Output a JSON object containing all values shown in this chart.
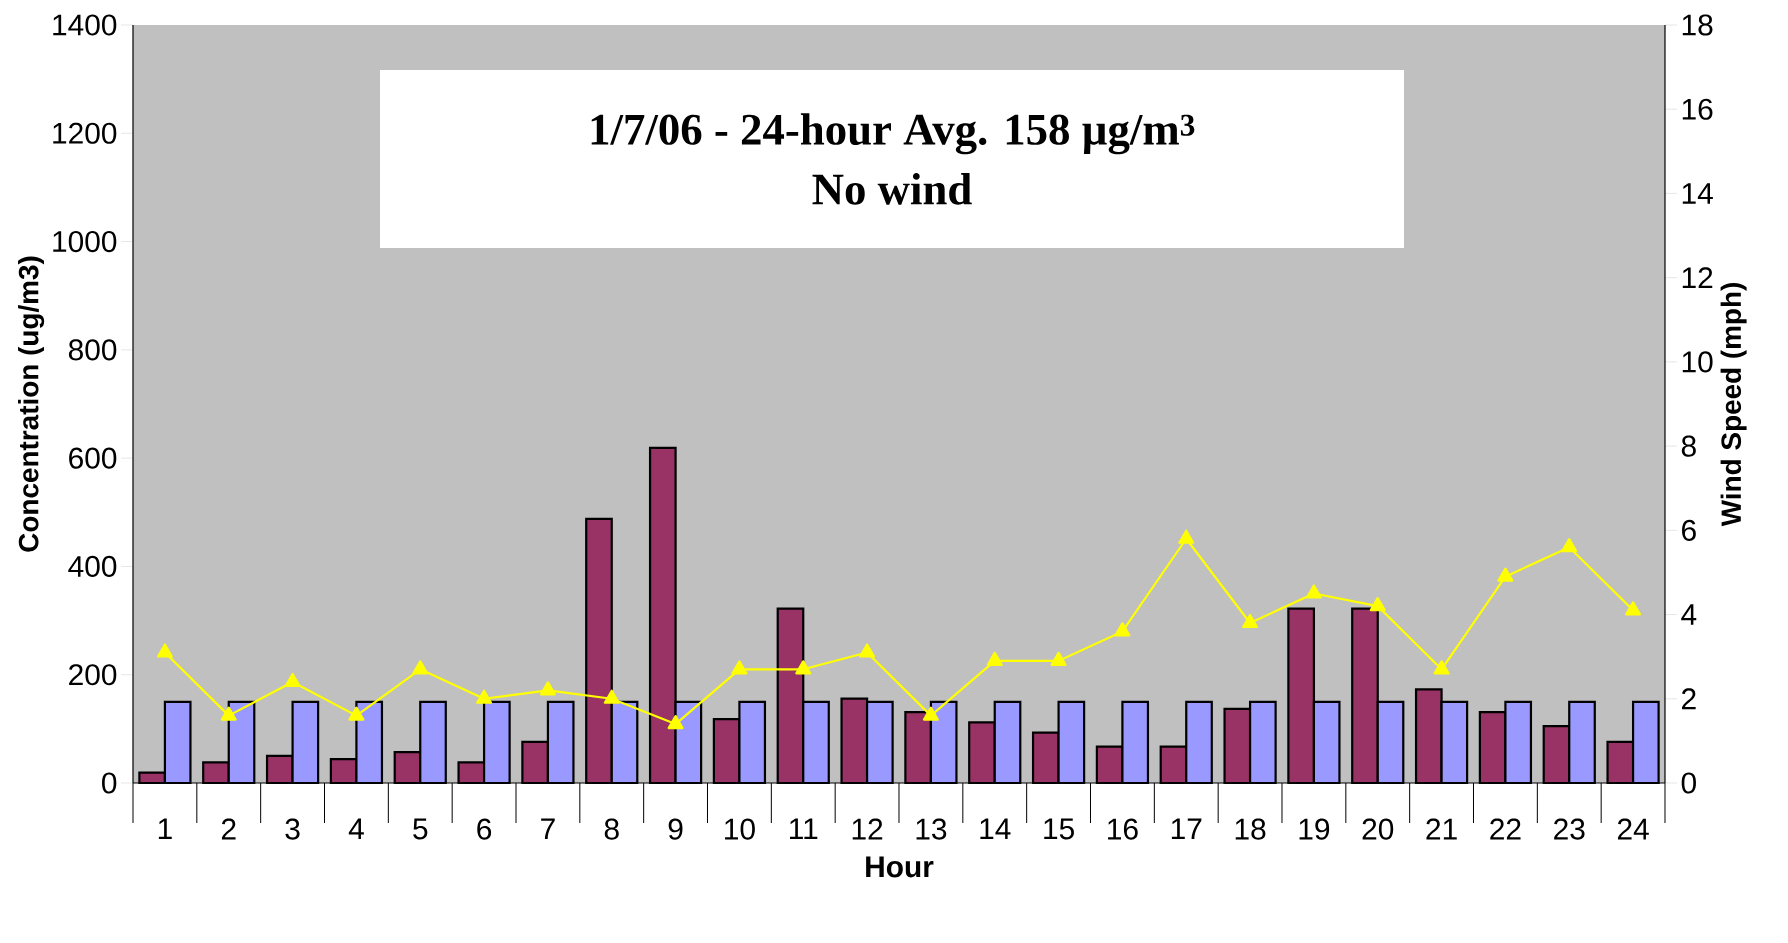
{
  "chart_data": {
    "type": "bar",
    "title": "1/7/06 - 24-hour Avg. 158 µg/m$^{3}$",
    "subtitle": "No wind",
    "xlabel": "Hour",
    "ylabel": "Concentration (ug/m3)",
    "y2label": "Wind Speed (mph)",
    "categories": [
      "1",
      "2",
      "3",
      "4",
      "5",
      "6",
      "7",
      "8",
      "9",
      "10",
      "11",
      "12",
      "13",
      "14",
      "15",
      "16",
      "17",
      "18",
      "19",
      "20",
      "21",
      "22",
      "23",
      "24"
    ],
    "series": [
      {
        "color": "#993366",
        "values": [
          19,
          38,
          50,
          44,
          57,
          38,
          76,
          488,
          619,
          118,
          322,
          156,
          131,
          112,
          93,
          67,
          67,
          137,
          322,
          322,
          173,
          131,
          105,
          76
        ]
      },
      {
        "color": "#9999ff",
        "values": [
          150,
          150,
          150,
          150,
          150,
          150,
          150,
          150,
          150,
          150,
          150,
          150,
          150,
          150,
          150,
          150,
          150,
          150,
          150,
          150,
          150,
          150,
          150,
          150
        ]
      },
      {
        "type": "line",
        "axis": "y2",
        "color": "#ffff00",
        "marker": "triangle",
        "values": [
          3.1,
          1.6,
          2.4,
          1.6,
          2.7,
          2.0,
          2.2,
          2.0,
          1.4,
          2.7,
          2.7,
          3.1,
          1.6,
          2.9,
          2.9,
          3.6,
          5.8,
          3.8,
          4.5,
          4.2,
          2.7,
          4.9,
          5.6,
          4.1
        ]
      }
    ],
    "ylim": [
      0,
      1400
    ],
    "yticks": [
      0,
      200,
      400,
      600,
      800,
      1000,
      1200,
      1400
    ],
    "y2lim": [
      0,
      18
    ],
    "y2ticks": [
      0,
      2,
      4,
      6,
      8,
      10,
      12,
      14,
      16,
      18
    ]
  }
}
